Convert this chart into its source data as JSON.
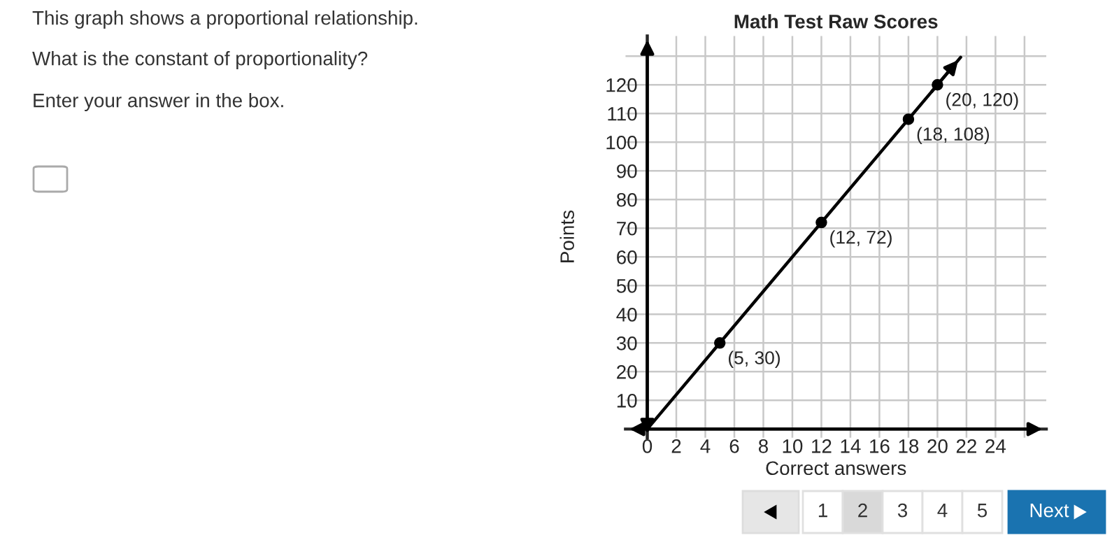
{
  "chart_data": {
    "type": "scatter",
    "title": "Math Test Raw Scores",
    "xlabel": "Correct answers",
    "ylabel": "Points",
    "series": [
      {
        "type": "line",
        "color": "#000000",
        "x": [
          0,
          21.6
        ],
        "values": [
          0,
          129.6
        ],
        "marker": "none"
      },
      {
        "color": "#000000",
        "x": [
          5,
          12,
          18,
          20
        ],
        "values": [
          30,
          72,
          108,
          120
        ],
        "marker": "circle"
      }
    ],
    "xlim": [
      -1.5,
      27.5
    ],
    "ylim": [
      -3,
      137
    ],
    "xticks": [
      {
        "value": 0,
        "label": "0"
      },
      2,
      4,
      6,
      8,
      10,
      12,
      14,
      16,
      18,
      20,
      22,
      24,
      {
        "value": 26,
        "label": null
      }
    ],
    "yticks": [
      10,
      20,
      30,
      40,
      50,
      60,
      70,
      80,
      90,
      100,
      110,
      120,
      {
        "value": 130,
        "label": null
      }
    ],
    "grid": true,
    "annotations": [
      {
        "text": "(5, 30)",
        "x": 5,
        "y": 30
      },
      {
        "text": "(12, 72)",
        "x": 12,
        "y": 72
      },
      {
        "text": "(18, 108)",
        "x": 18,
        "y": 108
      },
      {
        "text": "(20, 120)",
        "x": 20,
        "y": 120
      },
      "This graph shows a proportional relationship.",
      "What is the constant of proportionality?",
      "Enter your answer in the box.",
      "1",
      "2",
      "3",
      "4",
      "5",
      "Next"
    ]
  }
}
